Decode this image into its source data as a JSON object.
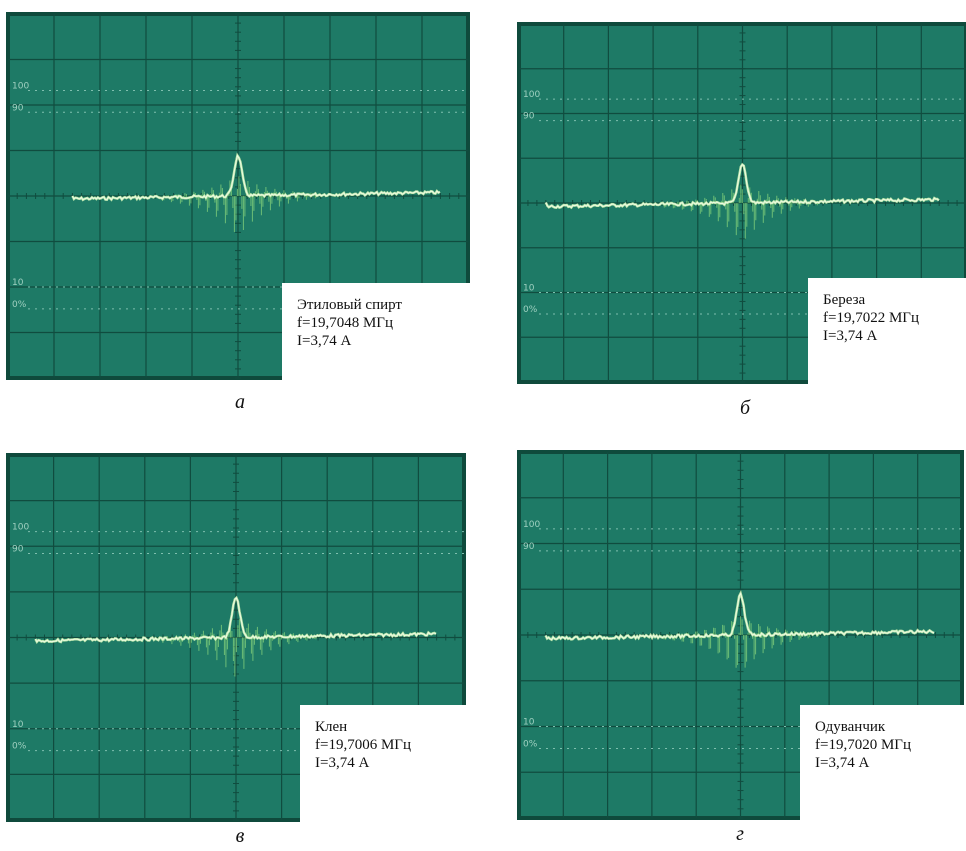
{
  "panels": [
    {
      "lines": [
        "Этиловый спирт",
        "f=19,7048 МГц",
        "I=3,74 А"
      ],
      "caption": "а",
      "scale": [
        "100",
        "90",
        "10",
        "0%"
      ]
    },
    {
      "lines": [
        "Береза",
        "f=19,7022 МГц",
        "I=3,74 А"
      ],
      "caption": "б",
      "scale": [
        "100",
        "90",
        "10",
        "0%"
      ]
    },
    {
      "lines": [
        "Клен",
        "f=19,7006 МГц",
        "I=3,74 А"
      ],
      "caption": "в",
      "scale": [
        "100",
        "90",
        "10",
        "0%"
      ]
    },
    {
      "lines": [
        "Одуванчик",
        "f=19,7020 МГц",
        "I=3,74 А"
      ],
      "caption": "г",
      "scale": [
        "100",
        "90",
        "10",
        "0%"
      ]
    }
  ]
}
